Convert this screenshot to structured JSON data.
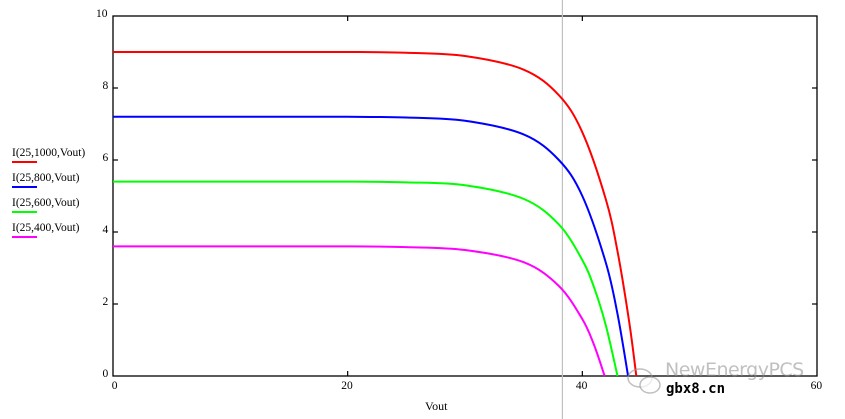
{
  "chart_data": {
    "type": "line",
    "title": "",
    "xlabel": "Vout",
    "ylabel": "",
    "xlim": [
      0,
      60
    ],
    "ylim": [
      0,
      10
    ],
    "x_ticks": [
      "0",
      "20",
      "40",
      "60"
    ],
    "y_ticks": [
      "0",
      "2",
      "4",
      "6",
      "8",
      "10"
    ],
    "grid": false,
    "legend_position": "left",
    "cursor_x": 38.3,
    "series": [
      {
        "name": "I(25,1000,Vout)",
        "color": "#ff0000",
        "x": [
          0,
          10,
          20,
          25,
          30,
          35,
          38,
          40,
          42,
          43,
          44,
          44.6
        ],
        "y": [
          9.0,
          9.0,
          9.0,
          8.98,
          8.89,
          8.51,
          7.8,
          6.77,
          4.91,
          3.46,
          1.49,
          0
        ]
      },
      {
        "name": "I(25,800,Vout)",
        "color": "#0000ff",
        "x": [
          0,
          10,
          20,
          25,
          30,
          35,
          38,
          40,
          42,
          43,
          43.9
        ],
        "y": [
          7.2,
          7.2,
          7.2,
          7.18,
          7.09,
          6.71,
          6.0,
          5.0,
          3.15,
          1.72,
          0
        ]
      },
      {
        "name": "I(25,600,Vout)",
        "color": "#00ff00",
        "x": [
          0,
          10,
          20,
          25,
          30,
          35,
          38,
          40,
          41,
          42,
          43.0
        ],
        "y": [
          5.4,
          5.4,
          5.4,
          5.38,
          5.3,
          4.92,
          4.21,
          3.22,
          2.46,
          1.41,
          0
        ]
      },
      {
        "name": "I(25,400,Vout)",
        "color": "#ff00ff",
        "x": [
          0,
          10,
          20,
          25,
          30,
          35,
          38,
          40,
          41,
          41.9
        ],
        "y": [
          3.6,
          3.6,
          3.6,
          3.58,
          3.5,
          3.16,
          2.5,
          1.58,
          0.86,
          0
        ]
      }
    ]
  },
  "watermark": {
    "brand": "NewEnergyPCS",
    "site": "gbx8.cn"
  }
}
